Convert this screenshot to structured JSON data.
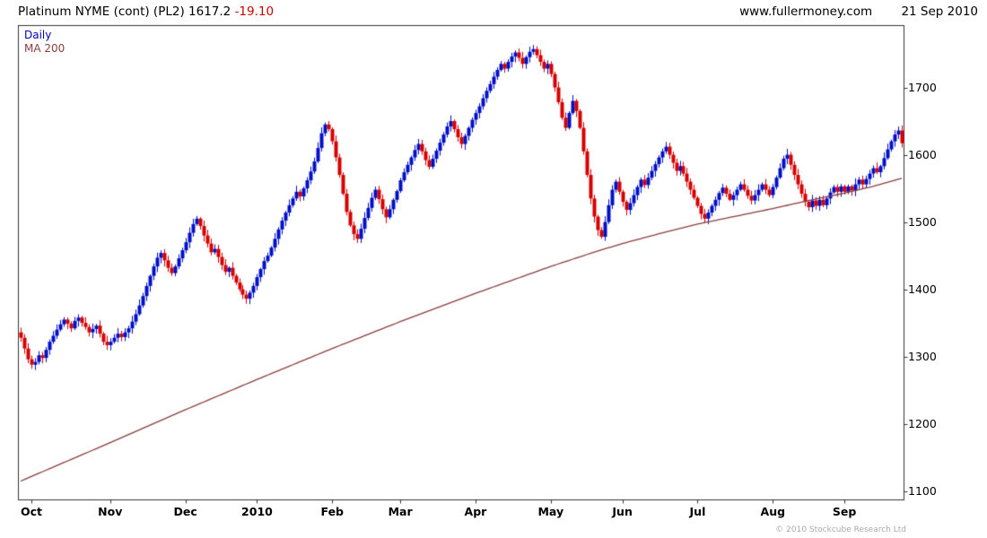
{
  "header": {
    "instrument": "Platinum NYME (cont) (PL2)",
    "price": "1617.2",
    "change": "-19.10",
    "website": "www.fullermoney.com",
    "date": "21 Sep 2010"
  },
  "legend": {
    "series1_label": "Daily",
    "series2_label": "MA 200"
  },
  "footer": {
    "copyright": "© 2010 Stockcube Research Ltd"
  },
  "colors": {
    "up_candle": "#0010c8",
    "down_candle": "#d80000",
    "ma_line": "#8b3e3e",
    "change_text": "#cc0000",
    "legend_daily": "#0000cc",
    "legend_ma": "#8b3e3e",
    "axis": "#333333",
    "copyright_gray": "#a9a9a9"
  },
  "chart_data": {
    "type": "candlestick",
    "title": "Platinum NYME (cont) (PL2)",
    "last_price": 1617.2,
    "change": -19.1,
    "grid": false,
    "legend_position": "top-left",
    "y_axis": {
      "side": "right",
      "min": 1087,
      "max": 1792,
      "ticks": [
        1100,
        1200,
        1300,
        1400,
        1500,
        1600,
        1700
      ]
    },
    "x_labels": [
      {
        "label": "Oct",
        "index": 3
      },
      {
        "label": "Nov",
        "index": 25
      },
      {
        "label": "Dec",
        "index": 46
      },
      {
        "label": "2010",
        "index": 66
      },
      {
        "label": "Feb",
        "index": 87
      },
      {
        "label": "Mar",
        "index": 106
      },
      {
        "label": "Apr",
        "index": 127
      },
      {
        "label": "May",
        "index": 148
      },
      {
        "label": "Jun",
        "index": 168
      },
      {
        "label": "Jul",
        "index": 189
      },
      {
        "label": "Aug",
        "index": 210
      },
      {
        "label": "Sep",
        "index": 230
      }
    ],
    "series": [
      {
        "name": "Daily",
        "type": "candlestick",
        "closes": [
          1328,
          1312,
          1296,
          1288,
          1292,
          1302,
          1298,
          1310,
          1322,
          1331,
          1340,
          1348,
          1355,
          1349,
          1342,
          1353,
          1358,
          1350,
          1344,
          1336,
          1341,
          1346,
          1334,
          1322,
          1317,
          1322,
          1328,
          1334,
          1329,
          1336,
          1342,
          1352,
          1363,
          1376,
          1390,
          1405,
          1420,
          1434,
          1447,
          1454,
          1443,
          1432,
          1424,
          1434,
          1446,
          1458,
          1470,
          1484,
          1497,
          1505,
          1494,
          1480,
          1468,
          1455,
          1460,
          1448,
          1436,
          1426,
          1432,
          1420,
          1410,
          1400,
          1392,
          1386,
          1395,
          1405,
          1418,
          1430,
          1442,
          1450,
          1462,
          1475,
          1489,
          1502,
          1514,
          1525,
          1535,
          1545,
          1538,
          1550,
          1562,
          1575,
          1590,
          1610,
          1632,
          1645,
          1638,
          1620,
          1596,
          1570,
          1542,
          1515,
          1495,
          1482,
          1475,
          1490,
          1506,
          1521,
          1536,
          1548,
          1534,
          1519,
          1507,
          1519,
          1533,
          1546,
          1562,
          1574,
          1585,
          1596,
          1607,
          1616,
          1605,
          1592,
          1582,
          1594,
          1606,
          1618,
          1630,
          1642,
          1650,
          1638,
          1626,
          1616,
          1628,
          1640,
          1652,
          1662,
          1672,
          1684,
          1695,
          1705,
          1716,
          1726,
          1735,
          1728,
          1738,
          1746,
          1752,
          1744,
          1735,
          1745,
          1753,
          1757,
          1748,
          1738,
          1728,
          1735,
          1720,
          1700,
          1678,
          1655,
          1640,
          1662,
          1680,
          1665,
          1640,
          1605,
          1570,
          1535,
          1508,
          1488,
          1478,
          1500,
          1525,
          1548,
          1560,
          1545,
          1530,
          1518,
          1528,
          1540,
          1552,
          1563,
          1555,
          1566,
          1576,
          1586,
          1596,
          1605,
          1612,
          1600,
          1588,
          1576,
          1583,
          1572,
          1560,
          1548,
          1536,
          1524,
          1512,
          1505,
          1514,
          1524,
          1533,
          1543,
          1551,
          1542,
          1533,
          1540,
          1548,
          1556,
          1548,
          1539,
          1532,
          1540,
          1548,
          1556,
          1548,
          1540,
          1552,
          1566,
          1580,
          1594,
          1600,
          1585,
          1570,
          1556,
          1542,
          1530,
          1522,
          1532,
          1524,
          1533,
          1525,
          1535,
          1544,
          1552,
          1545,
          1553,
          1545,
          1553,
          1547,
          1556,
          1563,
          1556,
          1564,
          1572,
          1580,
          1574,
          1583,
          1595,
          1608,
          1620,
          1630,
          1636,
          1617.2
        ]
      },
      {
        "name": "MA 200",
        "type": "line",
        "anchors": [
          [
            0,
            1115
          ],
          [
            25,
            1172
          ],
          [
            46,
            1221
          ],
          [
            66,
            1266
          ],
          [
            87,
            1312
          ],
          [
            106,
            1352
          ],
          [
            127,
            1394
          ],
          [
            148,
            1434
          ],
          [
            160,
            1455
          ],
          [
            168,
            1468
          ],
          [
            180,
            1485
          ],
          [
            189,
            1497
          ],
          [
            200,
            1509
          ],
          [
            210,
            1520
          ],
          [
            220,
            1532
          ],
          [
            230,
            1543
          ],
          [
            238,
            1553
          ],
          [
            246,
            1565
          ]
        ]
      }
    ]
  }
}
